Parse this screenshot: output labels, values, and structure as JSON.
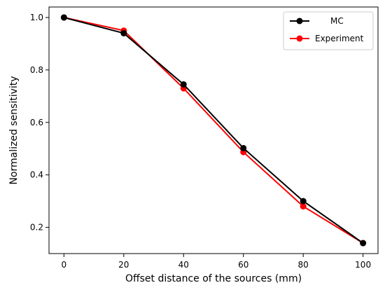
{
  "chart_data": {
    "type": "line",
    "title": "",
    "xlabel": "Offset distance of the sources (mm)",
    "ylabel": "Normalized sensitivity",
    "x": [
      0,
      20,
      40,
      60,
      80,
      100
    ],
    "xticks": [
      "0",
      "20",
      "40",
      "60",
      "80",
      "100"
    ],
    "yticks": [
      "0.2",
      "0.4",
      "0.6",
      "0.8",
      "1.0"
    ],
    "xlim": [
      -5,
      105
    ],
    "ylim": [
      0.1,
      1.04
    ],
    "grid": false,
    "legend_position": "top-right",
    "series": [
      {
        "name": "MC",
        "color": "#000000",
        "values": [
          1.0,
          0.94,
          0.745,
          0.502,
          0.3,
          0.14
        ]
      },
      {
        "name": "Experiment",
        "color": "#ff0000",
        "values": [
          1.0,
          0.95,
          0.73,
          0.487,
          0.28,
          0.14
        ]
      }
    ]
  }
}
